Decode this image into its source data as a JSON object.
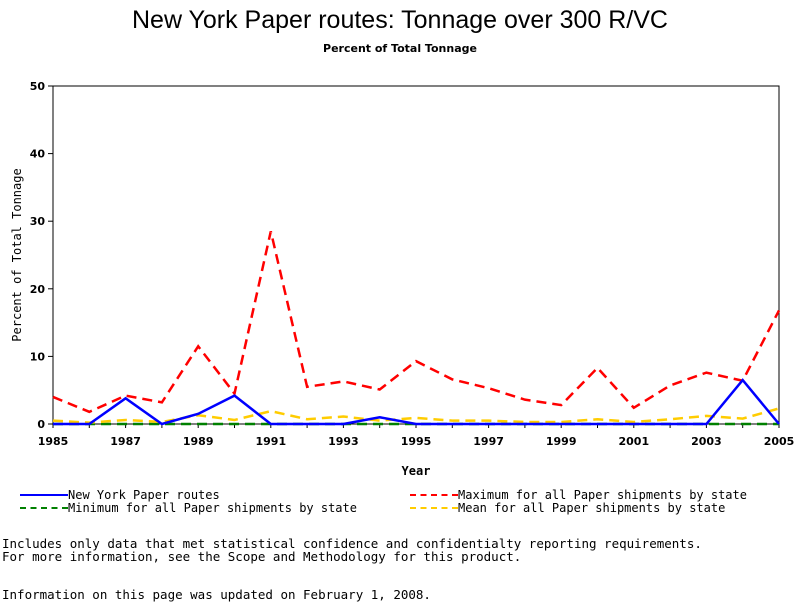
{
  "chart_data": {
    "type": "line",
    "title": "New York Paper routes: Tonnage over 300 R/VC",
    "subtitle": "Percent of Total Tonnage",
    "xlabel": "Year",
    "ylabel": "Percent of Total Tonnage",
    "xlim": [
      1985,
      2005
    ],
    "ylim": [
      0,
      50
    ],
    "x_ticks": [
      1985,
      1987,
      1989,
      1991,
      1993,
      1995,
      1997,
      1999,
      2001,
      2003,
      2005
    ],
    "y_ticks": [
      0,
      10,
      20,
      30,
      40,
      50
    ],
    "x": [
      1985,
      1986,
      1987,
      1988,
      1989,
      1990,
      1991,
      1992,
      1993,
      1994,
      1995,
      1996,
      1997,
      1998,
      1999,
      2000,
      2001,
      2002,
      2003,
      2004,
      2005
    ],
    "series": [
      {
        "name": "New York Paper routes",
        "color": "#0000ff",
        "style": "solid",
        "values": [
          0,
          0,
          3.8,
          0,
          1.5,
          4.2,
          0,
          0,
          0,
          1.0,
          0,
          0,
          0,
          0,
          0,
          0,
          0,
          0,
          0,
          6.5,
          0
        ]
      },
      {
        "name": "Maximum for all Paper shipments by state",
        "color": "#ff0000",
        "style": "dashed",
        "values": [
          4.0,
          1.8,
          4.2,
          3.2,
          11.5,
          4.5,
          28.5,
          5.5,
          6.3,
          5.1,
          9.3,
          6.6,
          5.3,
          3.6,
          2.8,
          8.3,
          2.4,
          5.7,
          7.6,
          6.4,
          16.8
        ]
      },
      {
        "name": "Minimum for all Paper shipments by state",
        "color": "#008000",
        "style": "dashed",
        "values": [
          0,
          0,
          0,
          0,
          0,
          0,
          0,
          0,
          0,
          0,
          0,
          0,
          0,
          0,
          0,
          0,
          0,
          0,
          0,
          0,
          0
        ]
      },
      {
        "name": "Mean for all Paper shipments by state",
        "color": "#ffcc00",
        "style": "dashed",
        "values": [
          0.5,
          0.2,
          0.6,
          0.3,
          1.3,
          0.6,
          1.9,
          0.7,
          1.1,
          0.5,
          0.9,
          0.5,
          0.5,
          0.3,
          0.3,
          0.7,
          0.3,
          0.7,
          1.2,
          0.8,
          2.3
        ]
      }
    ],
    "grid": false,
    "legend": "bottom"
  },
  "footnotes": {
    "line1": "Includes only data that met statistical confidence and confidentialty reporting requirements.",
    "line2": "For more information, see the Scope and Methodology for this product.",
    "line3": "Information on this page was updated on February 1, 2008."
  }
}
